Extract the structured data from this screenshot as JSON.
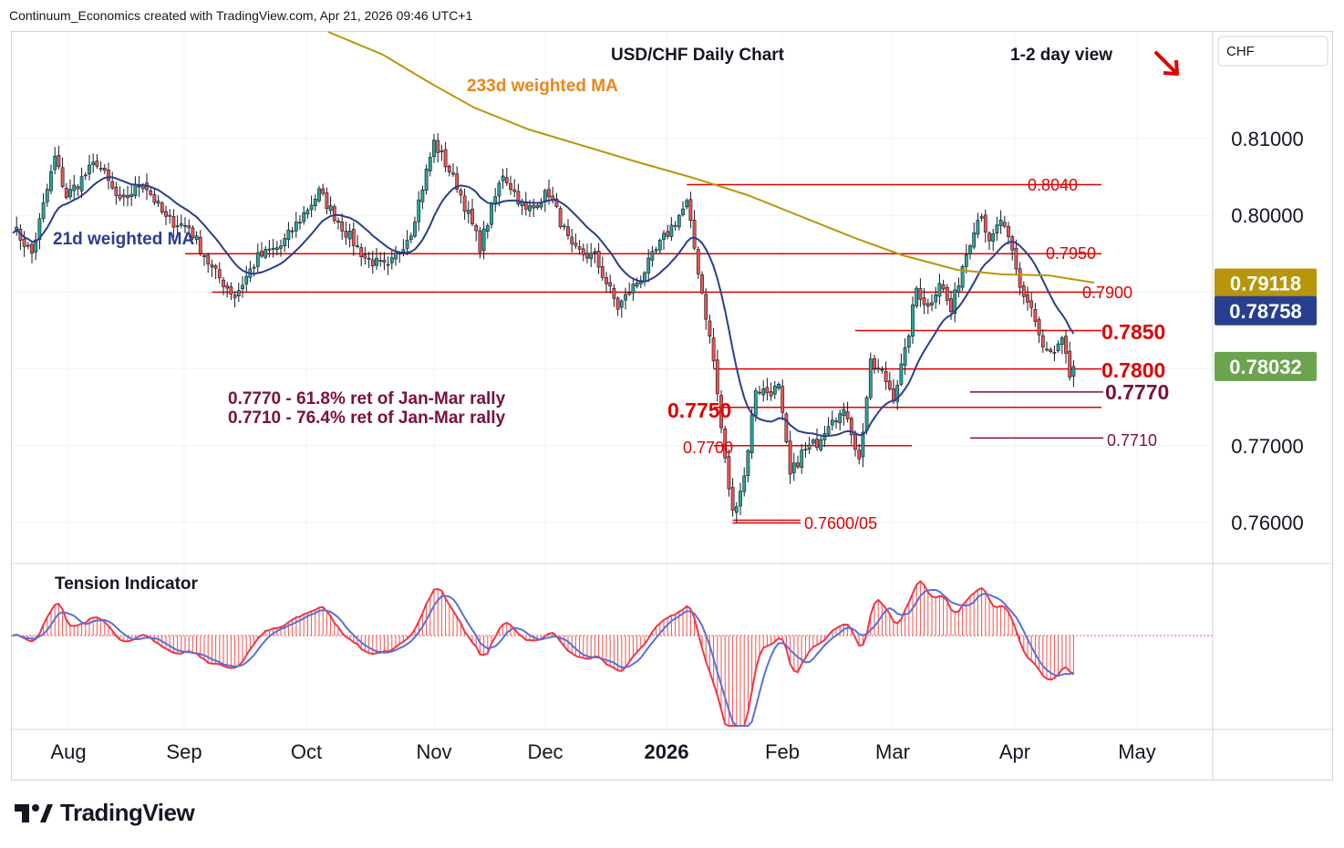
{
  "header": "Continuum_Economics created with TradingView.com, Apr 21, 2026 09:46 UTC+1",
  "footer_brand": "TradingView",
  "chart_data": {
    "type": "candlestick",
    "title": "USD/CHF Daily Chart",
    "view_label": "1-2 day view",
    "currency": "CHF",
    "colors": {
      "up": "#26a69a",
      "down": "#ef5350",
      "level": "#e00000",
      "fib": "#7a1040",
      "ma21": "#2a3e8f",
      "ma233": "#b8960c",
      "ma233_text": "#e8851a",
      "price_tag": "#6ba34f",
      "ma21_tag": "#2a3e8f",
      "ma233_tag": "#b8960c"
    },
    "y_axis": {
      "ticks": [
        "0.81000",
        "0.80000",
        "0.77000",
        "0.76000"
      ],
      "range": [
        0.7535,
        0.817
      ]
    },
    "x_axis": {
      "ticks": [
        "Aug",
        "Sep",
        "Oct",
        "Nov",
        "Dec",
        "2026",
        "Feb",
        "Mar",
        "Apr",
        "May"
      ]
    },
    "price_tags": [
      {
        "label": "0.79118",
        "kind": "ma233",
        "value": 0.79118
      },
      {
        "label": "0.78758",
        "kind": "ma21",
        "value": 0.78758
      },
      {
        "label": "0.78032",
        "kind": "price",
        "value": 0.78032
      }
    ],
    "ma_labels": {
      "ma233": "233d weighted MA",
      "ma21": "21d weighted MA"
    },
    "levels": [
      {
        "label": "0.8040",
        "value": 0.804,
        "from_day": 176
      },
      {
        "label": "0.7950",
        "value": 0.795,
        "from_day": 45
      },
      {
        "label": "0.7900",
        "value": 0.79,
        "from_day": 52
      },
      {
        "label": "0.7850",
        "value": 0.785,
        "from_day": 220
      },
      {
        "label": "0.7800",
        "value": 0.78,
        "from_day": 183
      },
      {
        "label": "0.7770",
        "value": 0.777,
        "from_day": 250
      },
      {
        "label": "0.7750",
        "value": 0.775,
        "from_day": 183
      },
      {
        "label": "0.7710",
        "value": 0.771,
        "from_day": 250
      },
      {
        "label": "0.7700",
        "value": 0.77,
        "from_day": 183
      },
      {
        "label": "0.7600/05",
        "value": 0.7603,
        "from_day": 188
      }
    ],
    "fib_notes": [
      "0.7770 - 61.8% ret of Jan-Mar rally",
      "0.7710 - 76.4% ret of Jan-Mar rally"
    ],
    "indicator": {
      "title": "Tension Indicator"
    },
    "anchors": [
      {
        "d": 0,
        "p": 0.7985
      },
      {
        "d": 5,
        "p": 0.795
      },
      {
        "d": 11,
        "p": 0.8075
      },
      {
        "d": 14,
        "p": 0.8025
      },
      {
        "d": 22,
        "p": 0.807
      },
      {
        "d": 28,
        "p": 0.8015
      },
      {
        "d": 34,
        "p": 0.8045
      },
      {
        "d": 40,
        "p": 0.7995
      },
      {
        "d": 46,
        "p": 0.7985
      },
      {
        "d": 52,
        "p": 0.793
      },
      {
        "d": 58,
        "p": 0.7895
      },
      {
        "d": 64,
        "p": 0.7945
      },
      {
        "d": 70,
        "p": 0.796
      },
      {
        "d": 80,
        "p": 0.803
      },
      {
        "d": 86,
        "p": 0.7985
      },
      {
        "d": 92,
        "p": 0.7945
      },
      {
        "d": 98,
        "p": 0.793
      },
      {
        "d": 104,
        "p": 0.798
      },
      {
        "d": 110,
        "p": 0.8095
      },
      {
        "d": 116,
        "p": 0.804
      },
      {
        "d": 122,
        "p": 0.796
      },
      {
        "d": 128,
        "p": 0.8055
      },
      {
        "d": 134,
        "p": 0.8005
      },
      {
        "d": 140,
        "p": 0.803
      },
      {
        "d": 146,
        "p": 0.7955
      },
      {
        "d": 152,
        "p": 0.7945
      },
      {
        "d": 158,
        "p": 0.788
      },
      {
        "d": 164,
        "p": 0.792
      },
      {
        "d": 170,
        "p": 0.797
      },
      {
        "d": 176,
        "p": 0.8015
      },
      {
        "d": 180,
        "p": 0.79
      },
      {
        "d": 183,
        "p": 0.781
      },
      {
        "d": 186,
        "p": 0.768
      },
      {
        "d": 188,
        "p": 0.7612
      },
      {
        "d": 191,
        "p": 0.766
      },
      {
        "d": 194,
        "p": 0.7775
      },
      {
        "d": 197,
        "p": 0.777
      },
      {
        "d": 200,
        "p": 0.7775
      },
      {
        "d": 203,
        "p": 0.766
      },
      {
        "d": 206,
        "p": 0.769
      },
      {
        "d": 210,
        "p": 0.7705
      },
      {
        "d": 214,
        "p": 0.774
      },
      {
        "d": 218,
        "p": 0.774
      },
      {
        "d": 221,
        "p": 0.768
      },
      {
        "d": 224,
        "p": 0.7805
      },
      {
        "d": 227,
        "p": 0.7795
      },
      {
        "d": 230,
        "p": 0.7765
      },
      {
        "d": 233,
        "p": 0.782
      },
      {
        "d": 236,
        "p": 0.7905
      },
      {
        "d": 239,
        "p": 0.788
      },
      {
        "d": 242,
        "p": 0.7915
      },
      {
        "d": 245,
        "p": 0.7875
      },
      {
        "d": 248,
        "p": 0.7935
      },
      {
        "d": 251,
        "p": 0.7985
      },
      {
        "d": 253,
        "p": 0.8005
      },
      {
        "d": 255,
        "p": 0.796
      },
      {
        "d": 258,
        "p": 0.7995
      },
      {
        "d": 261,
        "p": 0.795
      },
      {
        "d": 263,
        "p": 0.7905
      },
      {
        "d": 266,
        "p": 0.788
      },
      {
        "d": 269,
        "p": 0.7825
      },
      {
        "d": 272,
        "p": 0.7818
      },
      {
        "d": 274,
        "p": 0.7835
      },
      {
        "d": 276,
        "p": 0.779
      },
      {
        "d": 277,
        "p": 0.7803
      }
    ]
  }
}
